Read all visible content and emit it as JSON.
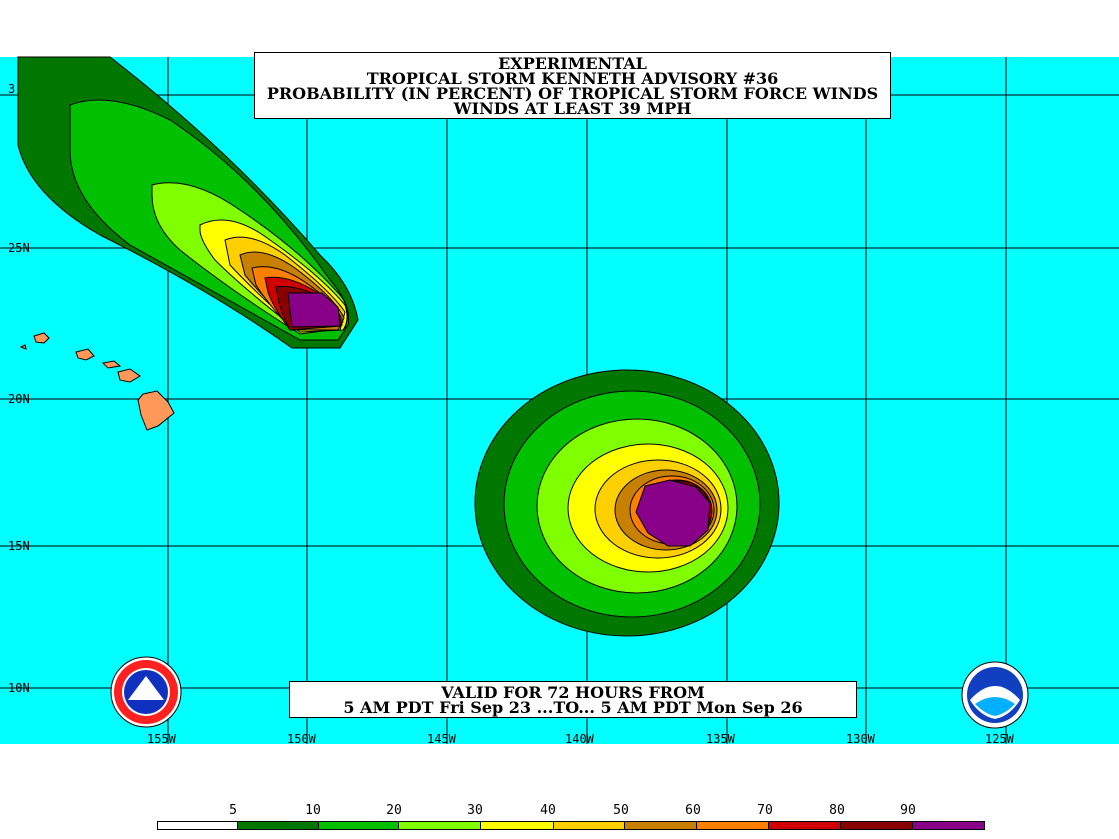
{
  "title": {
    "line1": "EXPERIMENTAL",
    "line2": "TROPICAL STORM KENNETH ADVISORY #36",
    "line3": "PROBABILITY (IN PERCENT) OF TROPICAL STORM FORCE WINDS",
    "line4": "WINDS AT LEAST 39 MPH"
  },
  "valid": {
    "line1": "VALID FOR 72 HOURS FROM",
    "line2": "5 AM PDT Fri Sep 23 ...TO... 5 AM PDT Mon Sep 26"
  },
  "lat_labels": [
    "3",
    "25N",
    "20N",
    "15N",
    "10N"
  ],
  "lon_labels": [
    "155W",
    "150W",
    "145W",
    "140W",
    "135W",
    "130W",
    "125W"
  ],
  "legend": {
    "values": [
      "5",
      "10",
      "20",
      "30",
      "40",
      "50",
      "60",
      "70",
      "80",
      "90"
    ],
    "colors": [
      "#ffffff",
      "#007800",
      "#00c000",
      "#80ff00",
      "#ffff00",
      "#ffd000",
      "#c88000",
      "#ff8000",
      "#d00000",
      "#880000",
      "#880088"
    ]
  },
  "colors": {
    "ocean": "#00ffff",
    "land": "#ff9858",
    "grid": "#000000"
  },
  "logos": {
    "left": "NWS",
    "right": "NOAA"
  }
}
